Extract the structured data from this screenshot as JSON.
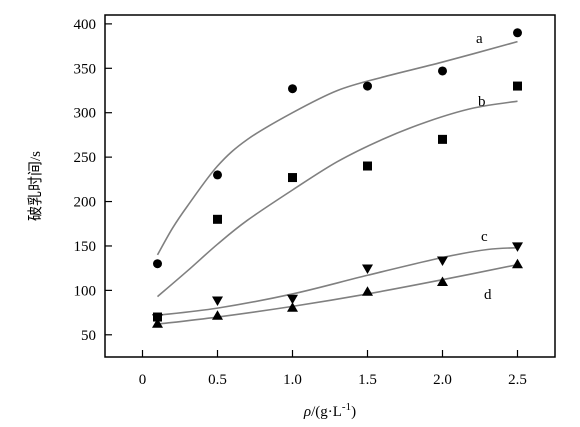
{
  "chart_data": {
    "type": "scatter",
    "xlabel": "ρ/(g·L⁻¹)",
    "xlabel_parts": {
      "symbol": "ρ",
      "unit_prefix": "/(g·L",
      "exponent": "-1",
      "unit_suffix": ")"
    },
    "ylabel": "破乳时间/s",
    "xlim": [
      -0.25,
      2.75
    ],
    "ylim": [
      25,
      410
    ],
    "x_ticks": [
      0,
      0.5,
      1.0,
      1.5,
      2.0,
      2.5
    ],
    "x_tick_labels": [
      "0",
      "0.5",
      "1.0",
      "1.5",
      "2.0",
      "2.5"
    ],
    "y_ticks": [
      50,
      100,
      150,
      200,
      250,
      300,
      350,
      400
    ],
    "y_tick_labels": [
      "50",
      "100",
      "150",
      "200",
      "250",
      "300",
      "350",
      "400"
    ],
    "grid": false,
    "series": [
      {
        "name": "a",
        "marker": "circle",
        "x": [
          0.1,
          0.5,
          1.0,
          1.5,
          2.0,
          2.5
        ],
        "y": [
          130,
          230,
          327,
          330,
          347,
          390
        ],
        "fit_x": [
          0.1,
          0.2,
          0.3,
          0.5,
          0.7,
          1.0,
          1.3,
          1.6,
          2.0,
          2.5
        ],
        "fit_y": [
          140,
          170,
          195,
          240,
          270,
          300,
          325,
          340,
          357,
          380
        ]
      },
      {
        "name": "b",
        "marker": "square",
        "x": [
          0.1,
          0.5,
          1.0,
          1.5,
          2.0,
          2.5
        ],
        "y": [
          70,
          180,
          227,
          240,
          270,
          330
        ],
        "fit_x": [
          0.1,
          0.3,
          0.5,
          0.7,
          1.0,
          1.3,
          1.6,
          1.9,
          2.2,
          2.5
        ],
        "fit_y": [
          93,
          122,
          152,
          179,
          213,
          245,
          270,
          290,
          305,
          313
        ]
      },
      {
        "name": "c",
        "marker": "triangle-down",
        "x": [
          0.1,
          0.5,
          1.0,
          1.5,
          2.0,
          2.5
        ],
        "y": [
          68,
          88,
          90,
          124,
          133,
          149
        ],
        "fit_x": [
          0.1,
          0.5,
          1.0,
          1.5,
          2.0,
          2.3,
          2.5
        ],
        "fit_y": [
          72,
          80,
          96,
          117,
          137,
          146,
          148
        ]
      },
      {
        "name": "d",
        "marker": "triangle-up",
        "x": [
          0.1,
          0.5,
          1.0,
          1.5,
          2.0,
          2.5
        ],
        "y": [
          63,
          72,
          81,
          99,
          110,
          130
        ],
        "fit_x": [
          0.1,
          0.5,
          1.0,
          1.5,
          2.0,
          2.5
        ],
        "fit_y": [
          62,
          70,
          82,
          96,
          112,
          129
        ]
      }
    ],
    "colors": {
      "points": "#000000",
      "curves": "#808080",
      "axes": "#000000"
    }
  }
}
